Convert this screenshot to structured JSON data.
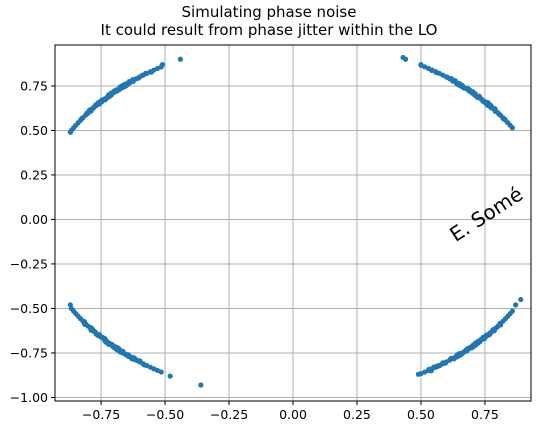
{
  "chart_data": {
    "type": "scatter",
    "title_line1": "Simulating phase noise",
    "title_line2": "It could result from phase jitter within the LO",
    "xlabel": "",
    "ylabel": "",
    "xlim": [
      -0.93,
      0.93
    ],
    "ylim": [
      -1.02,
      0.98
    ],
    "xticks": [
      -0.75,
      -0.5,
      -0.25,
      0.0,
      0.25,
      0.5,
      0.75
    ],
    "xtick_labels": [
      "−0.75",
      "−0.50",
      "−0.25",
      "0.00",
      "0.25",
      "0.50",
      "0.75"
    ],
    "yticks": [
      -1.0,
      -0.75,
      -0.5,
      -0.25,
      0.0,
      0.25,
      0.5,
      0.75
    ],
    "ytick_labels": [
      "−1.00",
      "−0.75",
      "−0.50",
      "−0.25",
      "0.00",
      "0.25",
      "0.50",
      "0.75"
    ],
    "grid": true,
    "marker_color": "#1f77b4",
    "clusters": [
      {
        "center_deg": 135,
        "radius": 1.0,
        "arc_from_deg": 121,
        "arc_to_deg": 150,
        "extra_points": [
          [
            -0.44,
            0.9
          ],
          [
            -0.51,
            0.87
          ],
          [
            -0.87,
            0.49
          ]
        ]
      },
      {
        "center_deg": 45,
        "radius": 1.0,
        "arc_from_deg": 31,
        "arc_to_deg": 60,
        "extra_points": [
          [
            0.44,
            0.9
          ],
          [
            0.43,
            0.91
          ],
          [
            0.5,
            0.87
          ]
        ]
      },
      {
        "center_deg": 225,
        "radius": 1.0,
        "arc_from_deg": 210,
        "arc_to_deg": 239,
        "extra_points": [
          [
            -0.36,
            -0.93
          ],
          [
            -0.48,
            -0.88
          ],
          [
            -0.87,
            -0.48
          ]
        ]
      },
      {
        "center_deg": 315,
        "radius": 1.0,
        "arc_from_deg": 300,
        "arc_to_deg": 329,
        "extra_points": [
          [
            0.49,
            -0.87
          ],
          [
            0.54,
            -0.85
          ],
          [
            0.89,
            -0.45
          ],
          [
            0.87,
            -0.48
          ]
        ]
      }
    ]
  },
  "watermark": "E. Somé"
}
